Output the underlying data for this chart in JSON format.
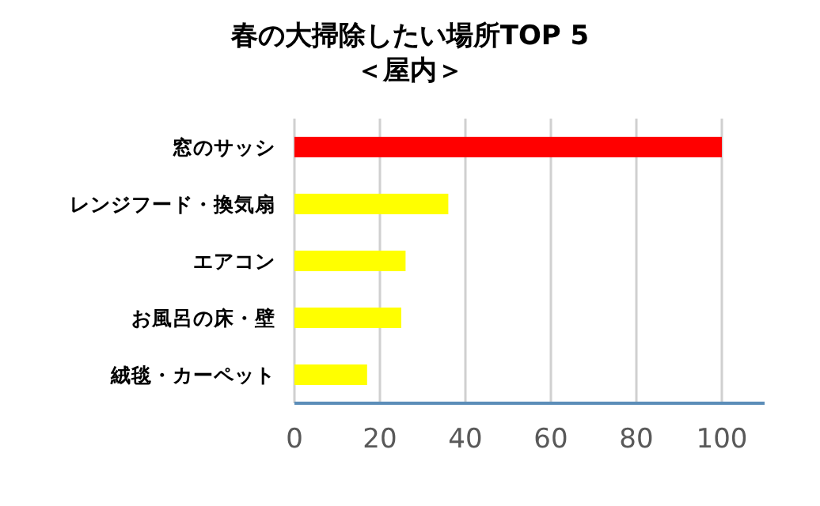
{
  "chart_data": {
    "type": "bar",
    "orientation": "horizontal",
    "title": "春の大掃除したい場所TOP 5\n＜屋内＞",
    "categories": [
      "窓のサッシ",
      "レンジフード・換気扇",
      "エアコン",
      "お風呂の床・壁",
      "絨毯・カーペット"
    ],
    "values": [
      100,
      36,
      26,
      25,
      17
    ],
    "colors": [
      "#ff0000",
      "#ffff00",
      "#ffff00",
      "#ffff00",
      "#ffff00"
    ],
    "xlim": [
      0,
      110
    ],
    "xticks": [
      0,
      20,
      40,
      60,
      80,
      100
    ],
    "grid": "x"
  }
}
